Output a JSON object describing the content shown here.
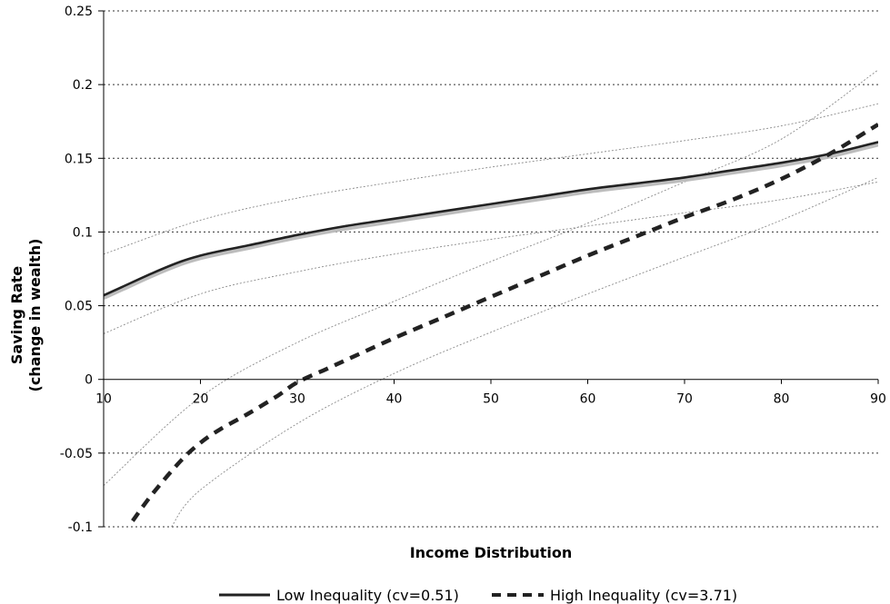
{
  "chart_data": {
    "type": "line",
    "title": "",
    "xlabel": "Income Distribution",
    "ylabel": [
      "Saving Rate",
      "(change in wealth)"
    ],
    "xlim": [
      10,
      90
    ],
    "ylim": [
      -0.1,
      0.25
    ],
    "x_ticks": [
      "10",
      "20",
      "30",
      "40",
      "50",
      "60",
      "70",
      "80",
      "90"
    ],
    "y_ticks": [
      "0.25",
      "0.2",
      "0.15",
      "0.1",
      "0.05",
      "0",
      "-0.05",
      "-0.1"
    ],
    "grid": "horizontal-dotted",
    "legend_position": "bottom",
    "series": [
      {
        "name": "Low Inequality (cv=0.51)",
        "style": "solid",
        "color": "#222222",
        "x": [
          10,
          12,
          15,
          18,
          20,
          22,
          25,
          30,
          35,
          40,
          45,
          50,
          55,
          60,
          65,
          70,
          75,
          80,
          85,
          90
        ],
        "values": [
          0.057,
          0.063,
          0.072,
          0.08,
          0.084,
          0.087,
          0.091,
          0.098,
          0.104,
          0.109,
          0.114,
          0.119,
          0.124,
          0.129,
          0.133,
          0.137,
          0.142,
          0.147,
          0.153,
          0.161
        ]
      },
      {
        "name": "High Inequality (cv=3.71)",
        "style": "dashed",
        "color": "#222222",
        "x": [
          13,
          15,
          18,
          20,
          22,
          25,
          28,
          30,
          33,
          36,
          40,
          45,
          50,
          55,
          60,
          65,
          70,
          75,
          80,
          85,
          90
        ],
        "values": [
          -0.096,
          -0.078,
          -0.055,
          -0.043,
          -0.034,
          -0.023,
          -0.011,
          -0.002,
          0.007,
          0.016,
          0.028,
          0.042,
          0.056,
          0.07,
          0.084,
          0.097,
          0.11,
          0.122,
          0.136,
          0.153,
          0.173
        ]
      }
    ],
    "confidence_bands": [
      {
        "x": [
          10,
          20,
          30,
          40,
          50,
          60,
          70,
          80,
          90
        ],
        "values": [
          0.085,
          0.108,
          0.123,
          0.134,
          0.144,
          0.153,
          0.162,
          0.172,
          0.187
        ]
      },
      {
        "x": [
          10,
          20,
          30,
          40,
          50,
          60,
          70,
          80,
          90
        ],
        "values": [
          0.031,
          0.058,
          0.073,
          0.085,
          0.095,
          0.104,
          0.113,
          0.122,
          0.134
        ]
      },
      {
        "x": [
          10,
          20,
          30,
          40,
          50,
          60,
          70,
          80,
          90
        ],
        "values": [
          -0.072,
          -0.012,
          0.025,
          0.053,
          0.08,
          0.106,
          0.134,
          0.163,
          0.21
        ]
      },
      {
        "x": [
          17,
          20,
          30,
          40,
          50,
          60,
          70,
          80,
          90
        ],
        "values": [
          -0.1,
          -0.075,
          -0.03,
          0.004,
          0.032,
          0.058,
          0.083,
          0.108,
          0.137
        ]
      }
    ]
  }
}
